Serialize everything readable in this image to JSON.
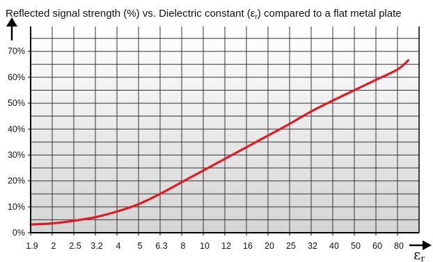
{
  "chart_data": {
    "type": "line",
    "title": "Reflected signal strength (%) vs. Dielectric constant (ε",
    "title_symbol": "ε",
    "title_subscript": "r",
    "title_suffix": ") compared to a flat metal plate",
    "xlabel_symbol": "ε",
    "xlabel_subscript": "r",
    "x_ticks": [
      "1.9",
      "2",
      "2.5",
      "3.2",
      "4",
      "5",
      "6.3",
      "8",
      "10",
      "12",
      "16",
      "20",
      "25",
      "32",
      "40",
      "50",
      "60",
      "80"
    ],
    "y_ticks": [
      "0%",
      "10%",
      "20%",
      "30%",
      "40%",
      "50%",
      "60%",
      "70%"
    ],
    "ylim": [
      0,
      80
    ],
    "grid": true,
    "series": [
      {
        "x": [
          1.9,
          2,
          2.5,
          3.2,
          4,
          5,
          6.3,
          8,
          10,
          12,
          16,
          20,
          25,
          32,
          40,
          50,
          60,
          80,
          90
        ],
        "values": [
          3.2,
          3.6,
          4.6,
          6.0,
          8.2,
          11.0,
          15.0,
          19.5,
          24.0,
          28.5,
          33.0,
          37.5,
          42.0,
          46.8,
          51.0,
          55.0,
          59.0,
          63.0,
          66.5
        ],
        "color": "#e01a22"
      }
    ],
    "colors": {
      "line": "#e01a22",
      "grid": "#333333",
      "frame": "#000000"
    }
  }
}
